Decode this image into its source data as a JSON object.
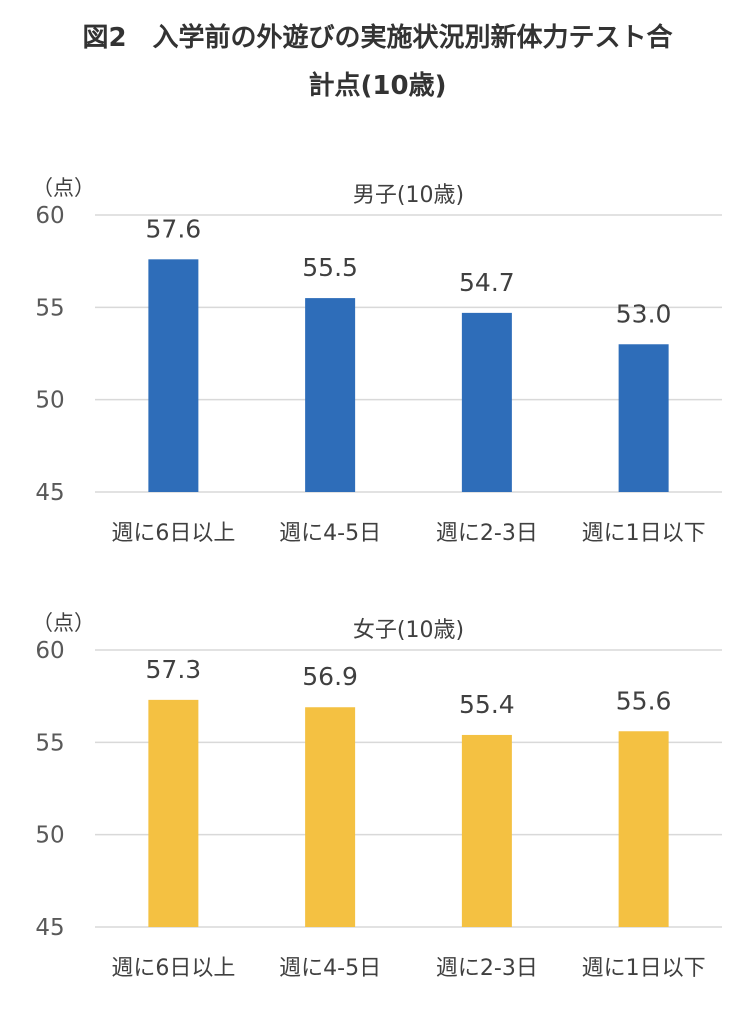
{
  "figure": {
    "title_line1": "図2　入学前の外遊びの実施状況別新体力テスト合",
    "title_line2": "計点(10歳)"
  },
  "chart_data": [
    {
      "type": "bar",
      "title": "男子(10歳)",
      "ylabel": "（点）",
      "xlabel": "",
      "categories": [
        "週に6日以上",
        "週に4-5日",
        "週に2-3日",
        "週に1日以下"
      ],
      "values": [
        57.6,
        55.5,
        54.7,
        53.0
      ],
      "value_labels": [
        "57.6",
        "55.5",
        "54.7",
        "53.0"
      ],
      "ylim": [
        45,
        60
      ],
      "yticks": [
        45,
        50,
        55,
        60
      ],
      "grid": true,
      "bar_color": "#2E6DB9"
    },
    {
      "type": "bar",
      "title": "女子(10歳)",
      "ylabel": "（点）",
      "xlabel": "",
      "categories": [
        "週に6日以上",
        "週に4-5日",
        "週に2-3日",
        "週に1日以下"
      ],
      "values": [
        57.3,
        56.9,
        55.4,
        55.6
      ],
      "value_labels": [
        "57.3",
        "56.9",
        "55.4",
        "55.6"
      ],
      "ylim": [
        45,
        60
      ],
      "yticks": [
        45,
        50,
        55,
        60
      ],
      "grid": true,
      "bar_color": "#F4C142"
    }
  ]
}
